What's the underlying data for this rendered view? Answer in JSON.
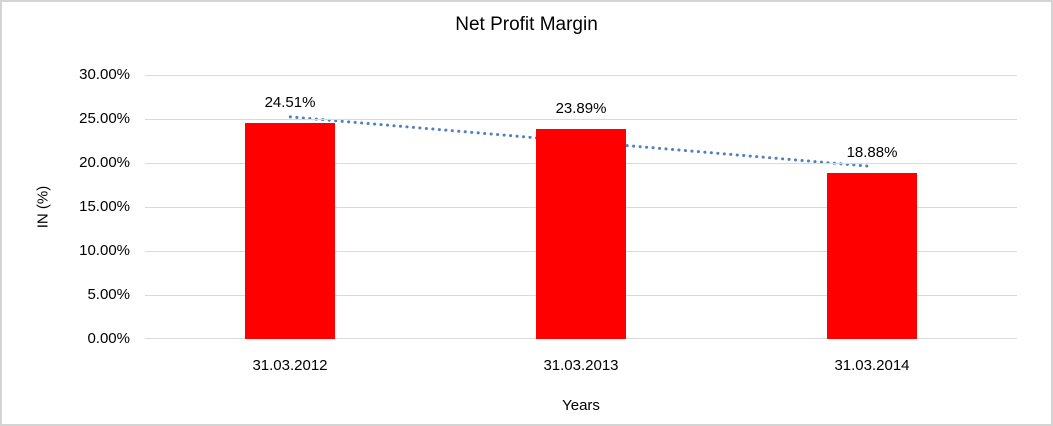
{
  "window": {
    "background_color": "#ffffff",
    "border_color": "#d4d4d4"
  },
  "chart_data": {
    "type": "bar",
    "title": "Net Profit Margin",
    "xlabel": "Years",
    "ylabel": "IN (%)",
    "categories": [
      "31.03.2012",
      "31.03.2013",
      "31.03.2014"
    ],
    "values": [
      24.51,
      23.89,
      18.88
    ],
    "data_labels": [
      "24.51%",
      "23.89%",
      "18.88%"
    ],
    "ytick_labels": [
      "0.00%",
      "5.00%",
      "10.00%",
      "15.00%",
      "20.00%",
      "25.00%",
      "30.00%"
    ],
    "ylim": [
      0,
      30
    ],
    "ytick_step": 5,
    "grid": "horizontal",
    "legend_position": "none",
    "bar_color": "#ff0000",
    "gridline_color": "#d9d9d9",
    "text_color": "#000000",
    "trendline": {
      "type": "linear",
      "style": "dotted",
      "color": "#4f81bd",
      "start_value": 25.24,
      "end_value": 19.61
    }
  }
}
